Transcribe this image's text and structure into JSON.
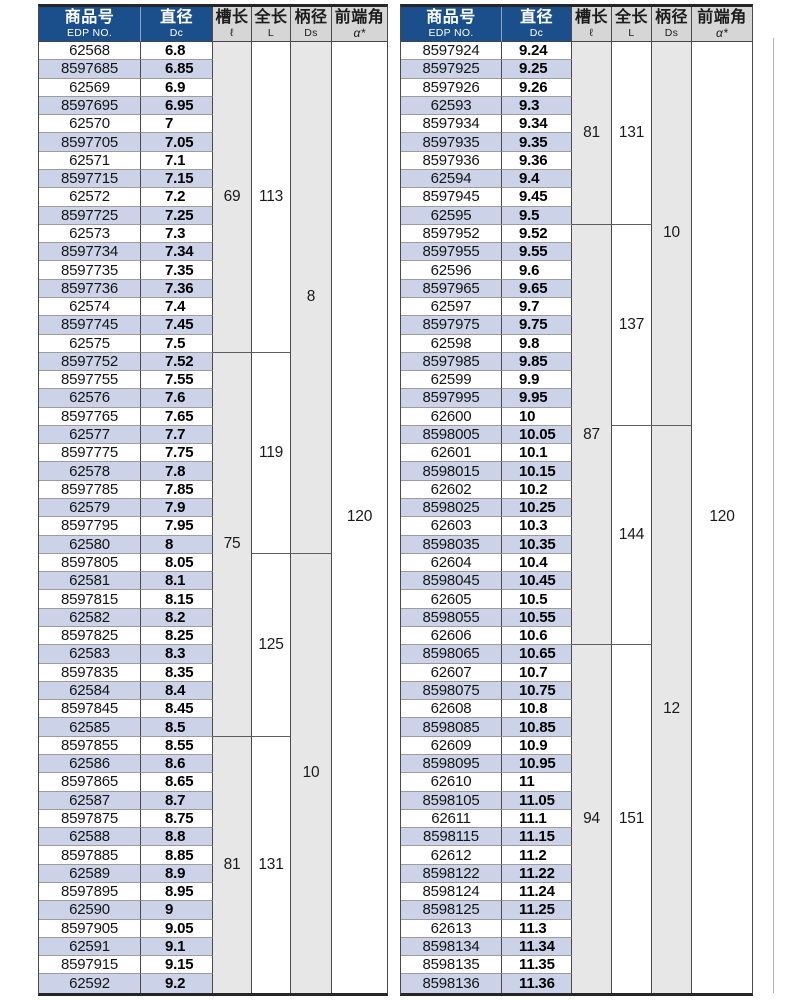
{
  "colors": {
    "header_blue": "#1a4f8c",
    "header_gray": "#d6d6d6",
    "row_alternate_blue": "#ccd3e8",
    "merged_column_gray": "#e7e7e7",
    "point_angle_value": "120"
  },
  "columns": [
    {
      "key": "edp",
      "zh": "商品号",
      "sub": "EDP NO."
    },
    {
      "key": "dc",
      "zh": "直径",
      "sub": "Dc"
    },
    {
      "key": "flute",
      "zh": "槽长",
      "sub": "ℓ"
    },
    {
      "key": "oal",
      "zh": "全长",
      "sub": "L"
    },
    {
      "key": "shank",
      "zh": "柄径",
      "sub": "Ds"
    },
    {
      "key": "angle",
      "zh": "前端角",
      "sub": "α*"
    }
  ],
  "tables": [
    {
      "rows": [
        [
          "62568",
          "6.8"
        ],
        [
          "8597685",
          "6.85"
        ],
        [
          "62569",
          "6.9"
        ],
        [
          "8597695",
          "6.95"
        ],
        [
          "62570",
          "7"
        ],
        [
          "8597705",
          "7.05"
        ],
        [
          "62571",
          "7.1"
        ],
        [
          "8597715",
          "7.15"
        ],
        [
          "62572",
          "7.2"
        ],
        [
          "8597725",
          "7.25"
        ],
        [
          "62573",
          "7.3"
        ],
        [
          "8597734",
          "7.34"
        ],
        [
          "8597735",
          "7.35"
        ],
        [
          "8597736",
          "7.36"
        ],
        [
          "62574",
          "7.4"
        ],
        [
          "8597745",
          "7.45"
        ],
        [
          "62575",
          "7.5"
        ],
        [
          "8597752",
          "7.52"
        ],
        [
          "8597755",
          "7.55"
        ],
        [
          "62576",
          "7.6"
        ],
        [
          "8597765",
          "7.65"
        ],
        [
          "62577",
          "7.7"
        ],
        [
          "8597775",
          "7.75"
        ],
        [
          "62578",
          "7.8"
        ],
        [
          "8597785",
          "7.85"
        ],
        [
          "62579",
          "7.9"
        ],
        [
          "8597795",
          "7.95"
        ],
        [
          "62580",
          "8"
        ],
        [
          "8597805",
          "8.05"
        ],
        [
          "62581",
          "8.1"
        ],
        [
          "8597815",
          "8.15"
        ],
        [
          "62582",
          "8.2"
        ],
        [
          "8597825",
          "8.25"
        ],
        [
          "62583",
          "8.3"
        ],
        [
          "8597835",
          "8.35"
        ],
        [
          "62584",
          "8.4"
        ],
        [
          "8597845",
          "8.45"
        ],
        [
          "62585",
          "8.5"
        ],
        [
          "8597855",
          "8.55"
        ],
        [
          "62586",
          "8.6"
        ],
        [
          "8597865",
          "8.65"
        ],
        [
          "62587",
          "8.7"
        ],
        [
          "8597875",
          "8.75"
        ],
        [
          "62588",
          "8.8"
        ],
        [
          "8597885",
          "8.85"
        ],
        [
          "62589",
          "8.9"
        ],
        [
          "8597895",
          "8.95"
        ],
        [
          "62590",
          "9"
        ],
        [
          "8597905",
          "9.05"
        ],
        [
          "62591",
          "9.1"
        ],
        [
          "8597915",
          "9.15"
        ],
        [
          "62592",
          "9.2"
        ]
      ],
      "sections": {
        "flute": [
          {
            "label": "69",
            "rows": 17
          },
          {
            "label": "75",
            "rows": 21
          },
          {
            "label": "81",
            "rows": 14
          }
        ],
        "oal": [
          {
            "label": "113",
            "rows": 17
          },
          {
            "label": "119",
            "rows": 11
          },
          {
            "label": "125",
            "rows": 10
          },
          {
            "label": "131",
            "rows": 14
          }
        ],
        "shank": [
          {
            "label": "8",
            "rows": 28
          },
          {
            "label": "10",
            "rows": 24
          }
        ],
        "angle": [
          {
            "label": "120",
            "rows": 52
          }
        ]
      }
    },
    {
      "rows": [
        [
          "8597924",
          "9.24"
        ],
        [
          "8597925",
          "9.25"
        ],
        [
          "8597926",
          "9.26"
        ],
        [
          "62593",
          "9.3"
        ],
        [
          "8597934",
          "9.34"
        ],
        [
          "8597935",
          "9.35"
        ],
        [
          "8597936",
          "9.36"
        ],
        [
          "62594",
          "9.4"
        ],
        [
          "8597945",
          "9.45"
        ],
        [
          "62595",
          "9.5"
        ],
        [
          "8597952",
          "9.52"
        ],
        [
          "8597955",
          "9.55"
        ],
        [
          "62596",
          "9.6"
        ],
        [
          "8597965",
          "9.65"
        ],
        [
          "62597",
          "9.7"
        ],
        [
          "8597975",
          "9.75"
        ],
        [
          "62598",
          "9.8"
        ],
        [
          "8597985",
          "9.85"
        ],
        [
          "62599",
          "9.9"
        ],
        [
          "8597995",
          "9.95"
        ],
        [
          "62600",
          "10"
        ],
        [
          "8598005",
          "10.05"
        ],
        [
          "62601",
          "10.1"
        ],
        [
          "8598015",
          "10.15"
        ],
        [
          "62602",
          "10.2"
        ],
        [
          "8598025",
          "10.25"
        ],
        [
          "62603",
          "10.3"
        ],
        [
          "8598035",
          "10.35"
        ],
        [
          "62604",
          "10.4"
        ],
        [
          "8598045",
          "10.45"
        ],
        [
          "62605",
          "10.5"
        ],
        [
          "8598055",
          "10.55"
        ],
        [
          "62606",
          "10.6"
        ],
        [
          "8598065",
          "10.65"
        ],
        [
          "62607",
          "10.7"
        ],
        [
          "8598075",
          "10.75"
        ],
        [
          "62608",
          "10.8"
        ],
        [
          "8598085",
          "10.85"
        ],
        [
          "62609",
          "10.9"
        ],
        [
          "8598095",
          "10.95"
        ],
        [
          "62610",
          "11"
        ],
        [
          "8598105",
          "11.05"
        ],
        [
          "62611",
          "11.1"
        ],
        [
          "8598115",
          "11.15"
        ],
        [
          "62612",
          "11.2"
        ],
        [
          "8598122",
          "11.22"
        ],
        [
          "8598124",
          "11.24"
        ],
        [
          "8598125",
          "11.25"
        ],
        [
          "62613",
          "11.3"
        ],
        [
          "8598134",
          "11.34"
        ],
        [
          "8598135",
          "11.35"
        ],
        [
          "8598136",
          "11.36"
        ]
      ],
      "sections": {
        "flute": [
          {
            "label": "81",
            "rows": 10
          },
          {
            "label": "87",
            "rows": 23
          },
          {
            "label": "94",
            "rows": 19
          }
        ],
        "oal": [
          {
            "label": "131",
            "rows": 10
          },
          {
            "label": "137",
            "rows": 11
          },
          {
            "label": "144",
            "rows": 12
          },
          {
            "label": "151",
            "rows": 19
          }
        ],
        "shank": [
          {
            "label": "10",
            "rows": 21
          },
          {
            "label": "12",
            "rows": 31
          }
        ],
        "angle": [
          {
            "label": "120",
            "rows": 52
          }
        ]
      }
    }
  ]
}
